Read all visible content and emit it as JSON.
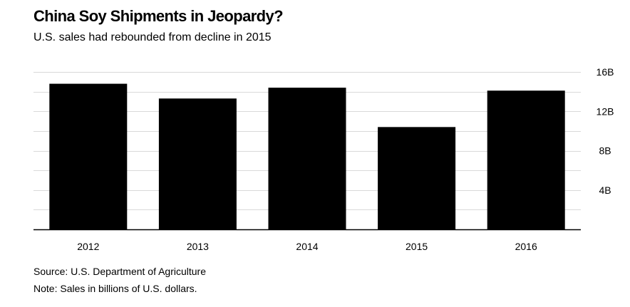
{
  "title": "China Soy Shipments in Jeopardy?",
  "subtitle": "U.S. sales had rebounded from decline in 2015",
  "source": "Source: U.S. Department of Agriculture",
  "note": "Note: Sales in billions of U.S. dollars.",
  "colors": {
    "bar": "#000000",
    "grid": "#d9d9d9",
    "axis": "#000000"
  },
  "chart_data": {
    "type": "bar",
    "categories": [
      "2012",
      "2013",
      "2014",
      "2015",
      "2016"
    ],
    "values": [
      14.8,
      13.3,
      14.4,
      10.4,
      14.1
    ],
    "title": "China Soy Shipments in Jeopardy?",
    "subtitle": "U.S. sales had rebounded from decline in 2015",
    "xlabel": "",
    "ylabel": "",
    "ylim": [
      0,
      16
    ],
    "yticks": [
      4,
      8,
      12,
      16
    ],
    "ytick_labels": [
      "4B",
      "8B",
      "12B",
      "16B"
    ],
    "grid": true,
    "minor_grid_step": 2,
    "y_axis_position": "right",
    "legend": "none"
  }
}
